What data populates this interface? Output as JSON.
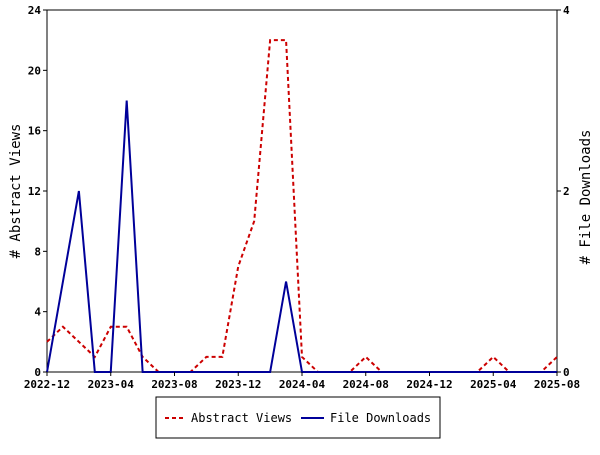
{
  "chart_data": {
    "type": "line",
    "x_tick_labels": [
      "2022-12",
      "2023-04",
      "2023-08",
      "2023-12",
      "2024-04",
      "2024-08",
      "2024-12",
      "2025-04",
      "2025-08"
    ],
    "x": [
      "2022-12",
      "2023-01",
      "2023-02",
      "2023-03",
      "2023-04",
      "2023-05",
      "2023-06",
      "2023-07",
      "2023-08",
      "2023-09",
      "2023-10",
      "2023-11",
      "2023-12",
      "2024-01",
      "2024-02",
      "2024-03",
      "2024-04",
      "2024-05",
      "2024-06",
      "2024-07",
      "2024-08",
      "2024-09",
      "2024-10",
      "2024-11",
      "2024-12",
      "2025-01",
      "2025-02",
      "2025-03",
      "2025-04",
      "2025-05",
      "2025-06",
      "2025-07",
      "2025-08"
    ],
    "ylabel_left": "# Abstract Views",
    "ylabel_right": "# File Downloads",
    "ylim_left": [
      0,
      24
    ],
    "ylim_right": [
      0,
      4
    ],
    "y_ticks_left": [
      "0",
      "4",
      "8",
      "12",
      "16",
      "20",
      "24"
    ],
    "y_ticks_right": [
      "0",
      "2",
      "4"
    ],
    "grid": false,
    "legend_position": "bottom",
    "series": [
      {
        "name": "Abstract Views",
        "axis": "left",
        "color": "#cc0000",
        "dash": true,
        "values": [
          2,
          3,
          2,
          1,
          3,
          3,
          1,
          0,
          0,
          0,
          1,
          1,
          7,
          10,
          22,
          22,
          1,
          0,
          0,
          0,
          1,
          0,
          0,
          0,
          0,
          0,
          0,
          0,
          1,
          0,
          0,
          0,
          1
        ]
      },
      {
        "name": "File Downloads",
        "axis": "right",
        "color": "#000099",
        "dash": false,
        "values": [
          0,
          1,
          2,
          0,
          0,
          3,
          0,
          0,
          0,
          0,
          0,
          0,
          0,
          0,
          0,
          1,
          0,
          0,
          0,
          0,
          0,
          0,
          0,
          0,
          0,
          0,
          0,
          0,
          0,
          0,
          0,
          0,
          0
        ]
      }
    ]
  }
}
